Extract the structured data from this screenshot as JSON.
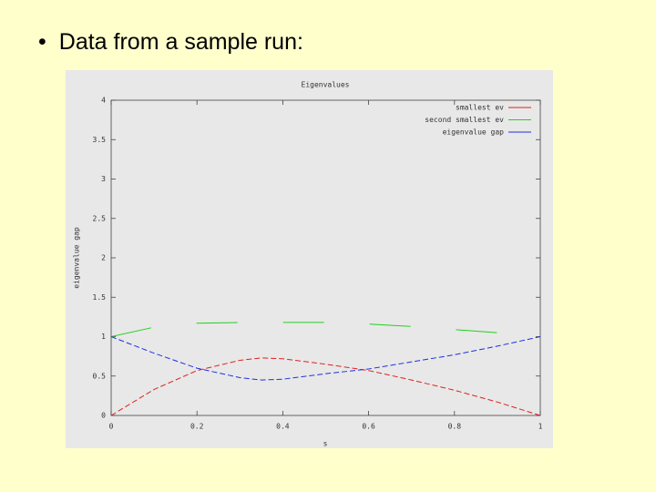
{
  "slide": {
    "bullet": "Data from a sample run:"
  },
  "chart_data": {
    "type": "line",
    "title": "Eigenvalues",
    "x_label": "s",
    "y_label": "eigenvalue gap",
    "x": [
      0,
      0.1,
      0.2,
      0.3,
      0.35,
      0.4,
      0.5,
      0.6,
      0.7,
      0.8,
      0.9,
      1
    ],
    "series": [
      {
        "name": "smallest ev",
        "color": "#e02020",
        "values": [
          0,
          0.33,
          0.57,
          0.7,
          0.73,
          0.72,
          0.65,
          0.57,
          0.45,
          0.32,
          0.17,
          0
        ]
      },
      {
        "name": "second smallest ev",
        "color": "#20d020",
        "values": [
          1,
          1.12,
          1.17,
          1.18,
          1.18,
          1.18,
          1.18,
          1.16,
          1.13,
          1.09,
          1.05,
          1
        ]
      },
      {
        "name": "eigenvalue gap",
        "color": "#2030e0",
        "values": [
          1,
          0.79,
          0.6,
          0.48,
          0.45,
          0.46,
          0.53,
          0.59,
          0.68,
          0.77,
          0.88,
          1
        ]
      }
    ],
    "xlim": [
      0,
      1
    ],
    "xticks": [
      0,
      0.2,
      0.4,
      0.6,
      0.8,
      1
    ],
    "ylim": [
      0,
      4
    ],
    "yticks": [
      0,
      0.5,
      1,
      1.5,
      2,
      2.5,
      3,
      3.5,
      4
    ],
    "legend": "top-right",
    "dashed": true
  }
}
